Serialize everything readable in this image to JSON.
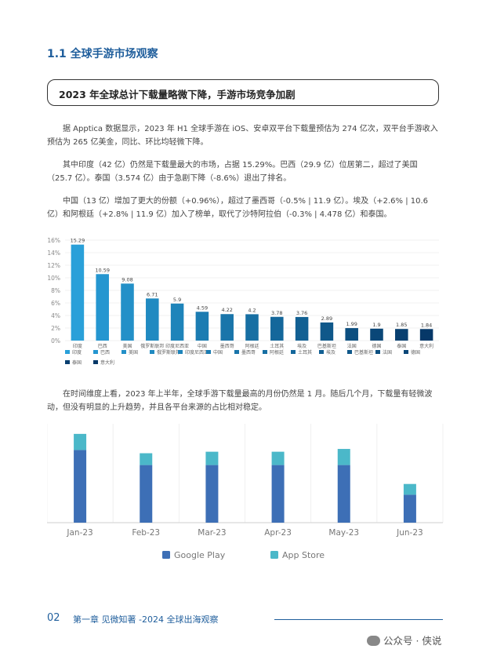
{
  "section_title": "1.1 全球手游市场观察",
  "highlight": "2023 年全球总计下载量略微下降，手游市场竞争加剧",
  "paragraphs": [
    "据 Apptica 数据显示，2023 年 H1 全球手游在 iOS、安卓双平台下载量预估为 274 亿次，双平台手游收入预估为 265 亿美金，同比、环比均轻微下降。",
    "其中印度（42 亿）仍然是下载量最大的市场，占据 15.29%。巴西（29.9 亿）位居第二，超过了美国（25.7 亿）。泰国（3.574 亿）由于急剧下降（-8.6%）退出了排名。",
    "中国（13 亿）增加了更大的份额（+0.96%），超过了墨西哥（-0.5% | 11.9 亿）。埃及（+2.6% | 10.6 亿）和阿根廷（+2.8% | 11.9 亿）加入了榜单，取代了沙特阿拉伯（-0.3% | 4.478 亿）和泰国。",
    "在时间维度上看，2023 年上半年，全球手游下载量最高的月份仍然是 1 月。随后几个月，下载量有轻微波动，但没有明显的上升趋势，并且各平台来源的占比相对稳定。"
  ],
  "chart_data": [
    {
      "type": "bar",
      "categories": [
        "印度",
        "巴西",
        "美国",
        "俄罗斯联邦",
        "印度尼西亚",
        "中国",
        "墨西哥",
        "阿根廷",
        "土耳其",
        "埃及",
        "巴基斯坦",
        "法国",
        "德国",
        "泰国",
        "意大利"
      ],
      "values": [
        15.29,
        10.59,
        9.08,
        6.71,
        5.9,
        4.59,
        4.22,
        4.2,
        3.78,
        3.76,
        2.89,
        1.99,
        1.9,
        1.85,
        1.84
      ],
      "value_labels": [
        "15.29",
        "10.59",
        "9.08",
        "6.71",
        "5.9",
        "4.59",
        "4.22",
        "4.2",
        "3.78",
        "3.76",
        "2.89",
        "1.99",
        "1.9",
        "1.85",
        "1.84"
      ],
      "ylim": [
        0,
        16
      ],
      "y_ticks": [
        "0%",
        "2%",
        "4%",
        "6%",
        "8%",
        "10%",
        "12%",
        "14%",
        "16%"
      ],
      "colors": [
        "#2aa0d9",
        "#2596d0",
        "#2390c8",
        "#208ac1",
        "#1e84ba",
        "#1b7cb2",
        "#1975aa",
        "#176fa3",
        "#14679b",
        "#126093",
        "#0f588a",
        "#0c4f80",
        "#0a4778",
        "#083f70",
        "#063868"
      ],
      "legend": [
        "印度",
        "巴西",
        "美国",
        "俄罗斯联邦",
        "印度尼西亚",
        "中国",
        "墨西哥",
        "阿根廷",
        "土耳其",
        "埃及",
        "巴基斯坦",
        "法国",
        "德国",
        "泰国",
        "意大利"
      ],
      "grid": true
    },
    {
      "type": "bar",
      "stacked": true,
      "categories": [
        "Jan-23",
        "Feb-23",
        "Mar-23",
        "Apr-23",
        "May-23",
        "Jun-23"
      ],
      "series": [
        {
          "name": "Google Play",
          "values": [
            3.38,
            2.68,
            2.68,
            2.68,
            2.68,
            1.3
          ],
          "color": "#3d6fb6"
        },
        {
          "name": "App Store",
          "values": [
            0.75,
            0.55,
            0.62,
            0.62,
            0.75,
            0.5
          ],
          "color": "#4bb8c9"
        }
      ],
      "ylim": [
        0,
        4.6
      ],
      "grid": true,
      "legend_position": "bottom"
    }
  ],
  "footer": {
    "page_number": "02",
    "chapter": "第一章  见微知著 -2024 全球出海观察"
  },
  "watermark": "公众号 · 侠说"
}
